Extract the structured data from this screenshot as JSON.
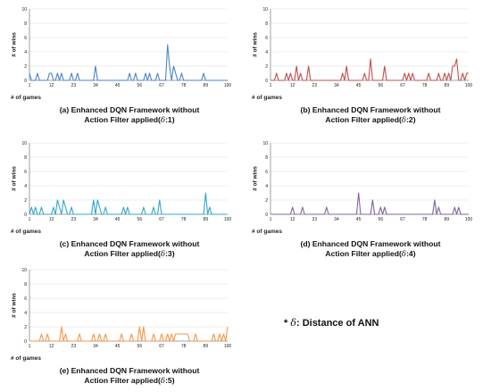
{
  "chart_data": [
    {
      "type": "line",
      "panel": "a",
      "caption_line1": "(a) Enhanced DQN Framework without",
      "caption_line2_prefix": "Action Filter applied(",
      "caption_symbol": "δ",
      "caption_line2_suffix": ":1)",
      "ylabel": "# of wins",
      "xlabel": "# of games",
      "ylim": [
        0,
        10
      ],
      "yticks": [
        "0",
        "2",
        "4",
        "6",
        "8",
        "10"
      ],
      "xlim": [
        1,
        100
      ],
      "xticks": [
        "1",
        "12",
        "23",
        "34",
        "45",
        "56",
        "67",
        "78",
        "89",
        "100"
      ],
      "grid": true,
      "color": "#4a86c5",
      "x": [
        1,
        2,
        3,
        4,
        5,
        6,
        7,
        8,
        9,
        10,
        11,
        12,
        13,
        14,
        15,
        16,
        17,
        18,
        19,
        20,
        21,
        22,
        23,
        24,
        25,
        26,
        27,
        28,
        29,
        30,
        31,
        32,
        33,
        34,
        35,
        36,
        37,
        38,
        39,
        40,
        41,
        42,
        43,
        44,
        45,
        46,
        47,
        48,
        49,
        50,
        51,
        52,
        53,
        54,
        55,
        56,
        57,
        58,
        59,
        60,
        61,
        62,
        63,
        64,
        65,
        66,
        67,
        68,
        69,
        70,
        71,
        72,
        73,
        74,
        75,
        76,
        77,
        78,
        79,
        80,
        81,
        82,
        83,
        84,
        85,
        86,
        87,
        88,
        89,
        90,
        91,
        92,
        93,
        94,
        95,
        96,
        97,
        98,
        99,
        100
      ],
      "values": [
        1,
        0,
        0,
        0,
        1,
        0,
        0,
        0,
        0,
        0,
        1,
        1,
        0,
        0,
        1,
        0,
        1,
        0,
        0,
        0,
        0,
        1,
        0,
        0,
        1,
        0,
        0,
        0,
        0,
        0,
        0,
        0,
        0,
        2,
        0,
        0,
        0,
        0,
        0,
        0,
        0,
        0,
        0,
        0,
        0,
        0,
        0,
        0,
        0,
        0,
        1,
        0,
        0,
        1,
        0,
        0,
        0,
        0,
        1,
        0,
        1,
        0,
        0,
        0,
        1,
        0,
        0,
        0,
        0,
        5,
        2,
        0,
        2,
        1,
        0,
        0,
        1,
        0,
        0,
        0,
        0,
        0,
        0,
        0,
        0,
        0,
        0,
        1,
        0,
        0,
        0,
        0,
        0,
        0,
        0,
        0,
        0,
        0,
        0,
        0
      ]
    },
    {
      "type": "line",
      "panel": "b",
      "caption_line1": "(b) Enhanced DQN Framework without",
      "caption_line2_prefix": "Action Filter applied(",
      "caption_symbol": "δ",
      "caption_line2_suffix": ":2)",
      "ylabel": "# of wins",
      "xlabel": "# of games",
      "ylim": [
        0,
        10
      ],
      "yticks": [
        "0",
        "2",
        "4",
        "6",
        "8",
        "10"
      ],
      "xlim": [
        1,
        100
      ],
      "xticks": [
        "1",
        "12",
        "23",
        "34",
        "45",
        "56",
        "67",
        "78",
        "89",
        "100"
      ],
      "grid": true,
      "color": "#c0504d",
      "x": [
        1,
        2,
        3,
        4,
        5,
        6,
        7,
        8,
        9,
        10,
        11,
        12,
        13,
        14,
        15,
        16,
        17,
        18,
        19,
        20,
        21,
        22,
        23,
        24,
        25,
        26,
        27,
        28,
        29,
        30,
        31,
        32,
        33,
        34,
        35,
        36,
        37,
        38,
        39,
        40,
        41,
        42,
        43,
        44,
        45,
        46,
        47,
        48,
        49,
        50,
        51,
        52,
        53,
        54,
        55,
        56,
        57,
        58,
        59,
        60,
        61,
        62,
        63,
        64,
        65,
        66,
        67,
        68,
        69,
        70,
        71,
        72,
        73,
        74,
        75,
        76,
        77,
        78,
        79,
        80,
        81,
        82,
        83,
        84,
        85,
        86,
        87,
        88,
        89,
        90,
        91,
        92,
        93,
        94,
        95,
        96,
        97,
        98,
        99,
        100
      ],
      "values": [
        0,
        0,
        0,
        1,
        0,
        0,
        0,
        0,
        1,
        0,
        1,
        0,
        0,
        2,
        0,
        1,
        0,
        0,
        0,
        2,
        0,
        0,
        0,
        0,
        0,
        0,
        0,
        0,
        0,
        0,
        0,
        0,
        0,
        0,
        0,
        0,
        1,
        0,
        2,
        0,
        0,
        0,
        0,
        0,
        0,
        0,
        0,
        1,
        0,
        0,
        3,
        0,
        0,
        0,
        0,
        0,
        0,
        2,
        0,
        0,
        0,
        0,
        0,
        0,
        0,
        0,
        0,
        1,
        0,
        1,
        0,
        1,
        0,
        0,
        0,
        0,
        0,
        0,
        0,
        1,
        0,
        0,
        0,
        0,
        1,
        0,
        0,
        1,
        0,
        1,
        0,
        2,
        2,
        3,
        0,
        0,
        1,
        0,
        1,
        1
      ]
    },
    {
      "type": "line",
      "panel": "c",
      "caption_line1": "(c) Enhanced DQN Framework without",
      "caption_line2_prefix": "Action Filter applied(",
      "caption_symbol": "δ",
      "caption_line2_suffix": ":3)",
      "ylabel": "# of wins",
      "xlabel": "# of games",
      "ylim": [
        0,
        10
      ],
      "yticks": [
        "0",
        "2",
        "4",
        "6",
        "8",
        "10"
      ],
      "xlim": [
        1,
        100
      ],
      "xticks": [
        "1",
        "12",
        "23",
        "34",
        "45",
        "56",
        "67",
        "78",
        "89",
        "100"
      ],
      "grid": true,
      "color": "#31a8c9",
      "x": [
        1,
        2,
        3,
        4,
        5,
        6,
        7,
        8,
        9,
        10,
        11,
        12,
        13,
        14,
        15,
        16,
        17,
        18,
        19,
        20,
        21,
        22,
        23,
        24,
        25,
        26,
        27,
        28,
        29,
        30,
        31,
        32,
        33,
        34,
        35,
        36,
        37,
        38,
        39,
        40,
        41,
        42,
        43,
        44,
        45,
        46,
        47,
        48,
        49,
        50,
        51,
        52,
        53,
        54,
        55,
        56,
        57,
        58,
        59,
        60,
        61,
        62,
        63,
        64,
        65,
        66,
        67,
        68,
        69,
        70,
        71,
        72,
        73,
        74,
        75,
        76,
        77,
        78,
        79,
        80,
        81,
        82,
        83,
        84,
        85,
        86,
        87,
        88,
        89,
        90,
        91,
        92,
        93,
        94,
        95,
        96,
        97,
        98,
        99,
        100
      ],
      "values": [
        0,
        1,
        0,
        1,
        0,
        0,
        1,
        0,
        0,
        0,
        0,
        0,
        1,
        0,
        2,
        1,
        0,
        2,
        1,
        0,
        0,
        1,
        0,
        0,
        0,
        0,
        0,
        0,
        0,
        0,
        0,
        0,
        2,
        0,
        2,
        1,
        0,
        0,
        1,
        0,
        0,
        0,
        0,
        0,
        0,
        0,
        0,
        1,
        0,
        1,
        0,
        0,
        0,
        0,
        0,
        0,
        0,
        1,
        0,
        0,
        0,
        0,
        1,
        0,
        0,
        2,
        0,
        0,
        0,
        0,
        0,
        0,
        0,
        0,
        0,
        0,
        0,
        0,
        0,
        0,
        0,
        0,
        0,
        0,
        0,
        0,
        0,
        0,
        3,
        0,
        1,
        0,
        0,
        0,
        0,
        0,
        0,
        0,
        0,
        0
      ]
    },
    {
      "type": "line",
      "panel": "d",
      "caption_line1": "(d) Enhanced DQN Framework without",
      "caption_line2_prefix": "Action Filter applied(",
      "caption_symbol": "δ",
      "caption_line2_suffix": ":4)",
      "ylabel": "# of wins",
      "xlabel": "# of games",
      "ylim": [
        0,
        10
      ],
      "yticks": [
        "0",
        "2",
        "4",
        "6",
        "8",
        "10"
      ],
      "xlim": [
        1,
        100
      ],
      "xticks": [
        "1",
        "12",
        "23",
        "34",
        "45",
        "56",
        "67",
        "78",
        "89",
        "100"
      ],
      "grid": true,
      "color": "#8064a2",
      "x": [
        1,
        2,
        3,
        4,
        5,
        6,
        7,
        8,
        9,
        10,
        11,
        12,
        13,
        14,
        15,
        16,
        17,
        18,
        19,
        20,
        21,
        22,
        23,
        24,
        25,
        26,
        27,
        28,
        29,
        30,
        31,
        32,
        33,
        34,
        35,
        36,
        37,
        38,
        39,
        40,
        41,
        42,
        43,
        44,
        45,
        46,
        47,
        48,
        49,
        50,
        51,
        52,
        53,
        54,
        55,
        56,
        57,
        58,
        59,
        60,
        61,
        62,
        63,
        64,
        65,
        66,
        67,
        68,
        69,
        70,
        71,
        72,
        73,
        74,
        75,
        76,
        77,
        78,
        79,
        80,
        81,
        82,
        83,
        84,
        85,
        86,
        87,
        88,
        89,
        90,
        91,
        92,
        93,
        94,
        95,
        96,
        97,
        98,
        99,
        100
      ],
      "values": [
        0,
        0,
        0,
        0,
        0,
        0,
        0,
        0,
        0,
        0,
        0,
        1,
        0,
        0,
        0,
        0,
        1,
        0,
        0,
        0,
        0,
        0,
        0,
        0,
        0,
        0,
        0,
        0,
        1,
        0,
        0,
        0,
        0,
        0,
        0,
        0,
        0,
        0,
        0,
        0,
        0,
        0,
        0,
        0,
        3,
        0,
        0,
        0,
        0,
        0,
        0,
        2,
        0,
        0,
        0,
        1,
        0,
        1,
        0,
        0,
        0,
        0,
        0,
        0,
        0,
        0,
        0,
        0,
        0,
        0,
        0,
        0,
        0,
        0,
        0,
        0,
        0,
        0,
        0,
        0,
        0,
        0,
        2,
        0,
        1,
        0,
        0,
        0,
        0,
        0,
        0,
        0,
        1,
        0,
        1,
        0,
        0,
        0,
        0,
        0
      ]
    },
    {
      "type": "line",
      "panel": "e",
      "caption_line1": "(e) Enhanced DQN Framework without",
      "caption_line2_prefix": "Action Filter applied(",
      "caption_symbol": "δ",
      "caption_line2_suffix": ":5)",
      "ylabel": "# of wins",
      "xlabel": "# of games",
      "ylim": [
        0,
        10
      ],
      "yticks": [
        "0",
        "2",
        "4",
        "6",
        "8",
        "10"
      ],
      "xlim": [
        1,
        100
      ],
      "xticks": [
        "1",
        "12",
        "23",
        "34",
        "45",
        "56",
        "67",
        "78",
        "89",
        "100"
      ],
      "grid": true,
      "color": "#f79646",
      "x": [
        1,
        2,
        3,
        4,
        5,
        6,
        7,
        8,
        9,
        10,
        11,
        12,
        13,
        14,
        15,
        16,
        17,
        18,
        19,
        20,
        21,
        22,
        23,
        24,
        25,
        26,
        27,
        28,
        29,
        30,
        31,
        32,
        33,
        34,
        35,
        36,
        37,
        38,
        39,
        40,
        41,
        42,
        43,
        44,
        45,
        46,
        47,
        48,
        49,
        50,
        51,
        52,
        53,
        54,
        55,
        56,
        57,
        58,
        59,
        60,
        61,
        62,
        63,
        64,
        65,
        66,
        67,
        68,
        69,
        70,
        71,
        72,
        73,
        74,
        75,
        76,
        77,
        78,
        79,
        80,
        81,
        82,
        83,
        84,
        85,
        86,
        87,
        88,
        89,
        90,
        91,
        92,
        93,
        94,
        95,
        96,
        97,
        98,
        99,
        100
      ],
      "values": [
        0,
        0,
        0,
        0,
        0,
        0,
        1,
        0,
        0,
        1,
        0,
        0,
        0,
        0,
        0,
        0,
        2,
        0,
        1,
        0,
        0,
        0,
        0,
        0,
        0,
        1,
        0,
        0,
        0,
        0,
        0,
        0,
        1,
        0,
        0,
        1,
        0,
        0,
        1,
        0,
        0,
        0,
        0,
        0,
        0,
        0,
        1,
        0,
        0,
        0,
        0,
        1,
        0,
        0,
        0,
        2,
        0,
        2,
        0,
        0,
        0,
        0,
        1,
        0,
        0,
        0,
        1,
        0,
        0,
        1,
        0,
        1,
        0,
        1,
        1,
        1,
        1,
        1,
        1,
        1,
        0,
        0,
        0,
        1,
        0,
        0,
        0,
        0,
        0,
        0,
        0,
        0,
        1,
        0,
        0,
        1,
        0,
        1,
        0,
        2
      ]
    }
  ],
  "note": {
    "prefix": "* ",
    "symbol": "δ",
    "text": ": Distance of ANN"
  }
}
